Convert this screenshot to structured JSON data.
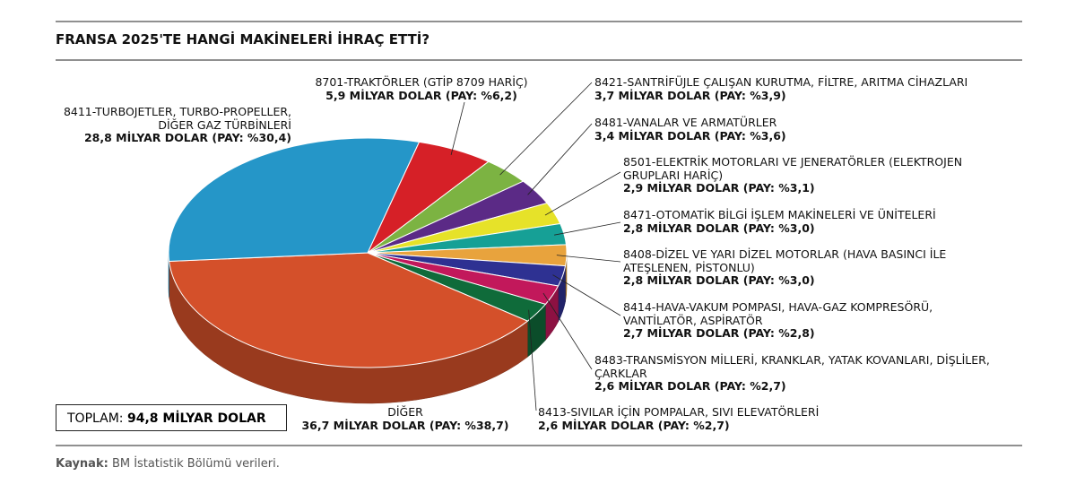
{
  "chart_data": {
    "type": "pie",
    "title": "FRANSA 2025'TE HANGİ MAKİNELERİ İHRAÇ ETTİ?",
    "categories": [
      "8701-TRAKTÖRLER (GTİP 8709 HARİÇ)",
      "8421-SANTRİFÜJLE ÇALIŞAN KURUTMA, FİLTRE, ARITMA CİHAZLARI",
      "8481-VANALAR VE ARMATÜRLER",
      "8501-ELEKTRİK MOTORLARI VE JENERATÖRLER (ELEKTROJEN GRUPLARI HARİÇ)",
      "8471-OTOMATİK BİLGİ İŞLEM MAKİNELERİ VE ÜNİTELERİ",
      "8408-DİZEL VE YARI DİZEL MOTORLAR (HAVA BASINCI İLE ATEŞLENEN, PİSTONLU)",
      "8414-HAVA-VAKUM POMPASI, HAVA-GAZ KOMPRESÖRÜ, VANTİLATÖR, ASPİRATÖR",
      "8483-TRANSMİSYON MİLLERİ, KRANKLAR, YATAK KOVANLARI, DİŞLİLER, ÇARKLAR",
      "8413-SIVILAR İÇİN POMPALAR, SIVI ELEVATÖRLERİ",
      "DİĞER",
      "8411-TURBOJETLER, TURBO-PROPELLER, DİĞER GAZ TÜRBİNLERİ"
    ],
    "values": [
      5.9,
      3.7,
      3.4,
      2.9,
      2.8,
      2.8,
      2.7,
      2.6,
      2.6,
      36.7,
      28.8
    ],
    "value_labels": [
      "5,9 MİLYAR DOLAR (PAY: %6,2)",
      "3,7 MİLYAR DOLAR (PAY: %3,9)",
      "3,4 MİLYAR DOLAR (PAY: %3,6)",
      "2,9 MİLYAR DOLAR (PAY: %3,1)",
      "2,8 MİLYAR DOLAR (PAY: %3,0)",
      "2,8 MİLYAR DOLAR (PAY: %3,0)",
      "2,7 MİLYAR DOLAR (PAY: %2,8)",
      "2,6 MİLYAR DOLAR (PAY: %2,7)",
      "2,6 MİLYAR DOLAR (PAY: %2,7)",
      "36,7 MİLYAR DOLAR (PAY: %38,7)",
      "28,8 MİLYAR DOLAR (PAY: %30,4)"
    ],
    "colors": [
      "#d62027",
      "#7cb342",
      "#5b2a86",
      "#e6e229",
      "#16a096",
      "#e8a33d",
      "#2e3192",
      "#c2185b",
      "#0f6b3a",
      "#d4502a",
      "#2596c8"
    ],
    "total_label": "TOPLAM:",
    "total_value": "94,8 MİLYAR DOLAR",
    "source_label": "Kaynak:",
    "source_text": "BM İstatistik Bölümü verileri."
  }
}
